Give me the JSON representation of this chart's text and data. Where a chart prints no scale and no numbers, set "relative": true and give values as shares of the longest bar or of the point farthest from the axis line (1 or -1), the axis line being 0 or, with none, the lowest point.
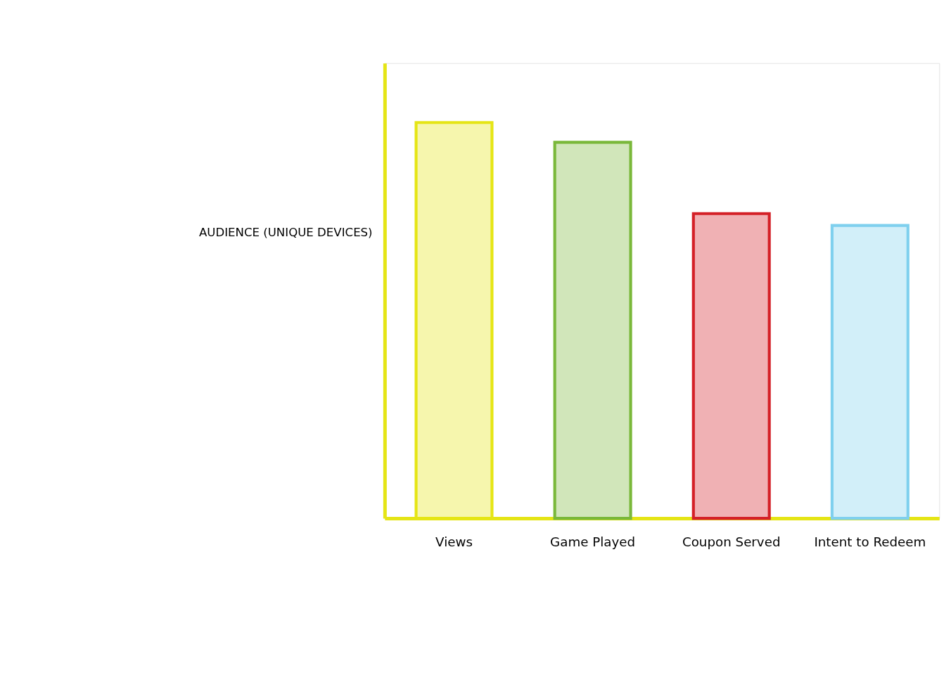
{
  "chart_data": {
    "type": "bar",
    "relative": true,
    "ylabel": "AUDIENCE (UNIQUE DEVICES)",
    "categories": [
      "Views",
      "Game Played",
      "Coupon Served",
      "Intent to Redeem"
    ],
    "values": [
      1,
      0.95,
      0.77,
      0.74
    ],
    "colors": [
      "#e5e515",
      "#7ab83a",
      "#d42027",
      "#7fd0ee"
    ],
    "grid": false,
    "legend": false
  }
}
